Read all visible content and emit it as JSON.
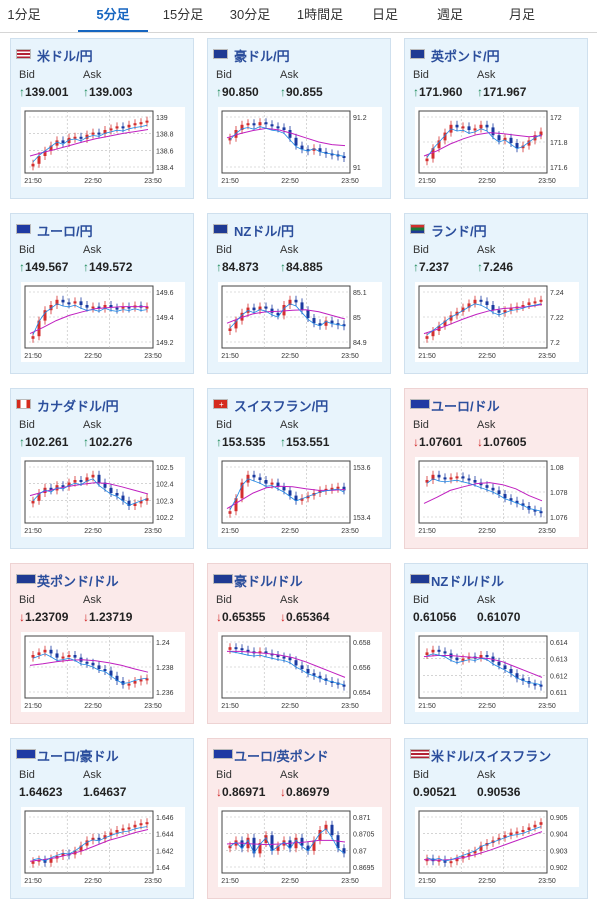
{
  "tabs": [
    {
      "label": "1分足",
      "active": false
    },
    {
      "label": "5分足",
      "active": true
    },
    {
      "label": "15分足",
      "active": false
    },
    {
      "label": "30分足",
      "active": false
    },
    {
      "label": "1時間足",
      "active": false
    },
    {
      "label": "日足",
      "active": false
    },
    {
      "label": "週足",
      "active": false
    },
    {
      "label": "月足",
      "active": false
    }
  ],
  "labels": {
    "bid": "Bid",
    "ask": "Ask"
  },
  "colors": {
    "up_candle": "#d32f2f",
    "down_candle": "#1a3aa0",
    "ma_short": "#1e88e5",
    "ma_long": "#c020c0",
    "card_up_bg": "#e8f4fc",
    "card_down_bg": "#fbeaea",
    "up_arrow": "#1a8a58",
    "down_arrow": "#d02020"
  },
  "pairs": [
    {
      "name": "米ドル/円",
      "flag": "us-flag-icon",
      "dir": "up",
      "bid": "139.001",
      "ask": "139.003",
      "yticks": [
        "139",
        "138.8",
        "138.6",
        "138.4"
      ],
      "xticks": [
        "21:50",
        "22:50",
        "23:50"
      ],
      "shape": [
        0.1,
        0.25,
        0.35,
        0.45,
        0.55,
        0.5,
        0.6,
        0.62,
        0.58,
        0.66,
        0.7,
        0.68,
        0.75,
        0.78,
        0.82,
        0.8,
        0.85,
        0.88,
        0.9,
        0.93
      ],
      "ma": [
        0.25,
        0.32,
        0.38,
        0.45,
        0.52,
        0.58,
        0.63,
        0.68,
        0.72,
        0.76
      ]
    },
    {
      "name": "豪ドル/円",
      "flag": "au-flag-icon",
      "dir": "up",
      "bid": "90.850",
      "ask": "90.855",
      "yticks": [
        "91.2",
        "91"
      ],
      "xticks": [
        "21:50",
        "22:50",
        "23:50"
      ],
      "shape": [
        0.6,
        0.75,
        0.85,
        0.88,
        0.84,
        0.9,
        0.86,
        0.82,
        0.8,
        0.75,
        0.6,
        0.45,
        0.38,
        0.35,
        0.4,
        0.33,
        0.3,
        0.28,
        0.25,
        0.23
      ],
      "ma": [
        0.6,
        0.68,
        0.74,
        0.78,
        0.75,
        0.68,
        0.6,
        0.52,
        0.47,
        0.45
      ]
    },
    {
      "name": "英ポンド/円",
      "flag": "gb-flag-icon",
      "dir": "up",
      "bid": "171.960",
      "ask": "171.967",
      "yticks": [
        "172",
        "171.8",
        "171.6"
      ],
      "xticks": [
        "21:50",
        "22:50",
        "23:50"
      ],
      "shape": [
        0.2,
        0.4,
        0.55,
        0.7,
        0.85,
        0.8,
        0.82,
        0.75,
        0.78,
        0.85,
        0.8,
        0.65,
        0.55,
        0.6,
        0.5,
        0.4,
        0.45,
        0.55,
        0.65,
        0.72
      ],
      "ma": [
        0.25,
        0.35,
        0.48,
        0.58,
        0.66,
        0.7,
        0.68,
        0.65,
        0.62,
        0.64
      ]
    },
    {
      "name": "ユーロ/円",
      "flag": "eu-flag-icon",
      "dir": "up",
      "bid": "149.567",
      "ask": "149.572",
      "yticks": [
        "149.6",
        "149.4",
        "149.2"
      ],
      "xticks": [
        "21:50",
        "22:50",
        "23:50"
      ],
      "shape": [
        0.15,
        0.45,
        0.65,
        0.75,
        0.85,
        0.8,
        0.78,
        0.82,
        0.75,
        0.7,
        0.72,
        0.68,
        0.75,
        0.7,
        0.68,
        0.72,
        0.7,
        0.74,
        0.7,
        0.72
      ],
      "ma": [
        0.2,
        0.32,
        0.45,
        0.55,
        0.62,
        0.68,
        0.7,
        0.72,
        0.72,
        0.72
      ]
    },
    {
      "name": "NZドル/円",
      "flag": "nz-flag-icon",
      "dir": "up",
      "bid": "84.873",
      "ask": "84.885",
      "yticks": [
        "85.1",
        "85",
        "84.9"
      ],
      "xticks": [
        "21:50",
        "22:50",
        "23:50"
      ],
      "shape": [
        0.3,
        0.45,
        0.6,
        0.7,
        0.65,
        0.72,
        0.68,
        0.6,
        0.55,
        0.75,
        0.85,
        0.8,
        0.65,
        0.5,
        0.4,
        0.35,
        0.45,
        0.4,
        0.38,
        0.35
      ],
      "ma": [
        0.4,
        0.5,
        0.58,
        0.62,
        0.63,
        0.65,
        0.66,
        0.62,
        0.55,
        0.48
      ]
    },
    {
      "name": "ランド/円",
      "flag": "za-flag-icon",
      "dir": "up",
      "bid": "7.237",
      "ask": "7.246",
      "yticks": [
        "7.24",
        "7.22",
        "7.2"
      ],
      "xticks": [
        "21:50",
        "22:50",
        "23:50"
      ],
      "shape": [
        0.15,
        0.25,
        0.35,
        0.45,
        0.55,
        0.62,
        0.7,
        0.78,
        0.85,
        0.82,
        0.75,
        0.65,
        0.6,
        0.65,
        0.7,
        0.72,
        0.75,
        0.8,
        0.82,
        0.85
      ],
      "ma": [
        0.2,
        0.28,
        0.38,
        0.48,
        0.57,
        0.64,
        0.68,
        0.7,
        0.72,
        0.76
      ]
    },
    {
      "name": "カナダドル/円",
      "flag": "ca-flag-icon",
      "dir": "up",
      "bid": "102.261",
      "ask": "102.276",
      "yticks": [
        "102.5",
        "102.4",
        "102.3",
        "102.2"
      ],
      "xticks": [
        "21:50",
        "22:50",
        "23:50"
      ],
      "shape": [
        0.35,
        0.5,
        0.6,
        0.55,
        0.65,
        0.62,
        0.7,
        0.75,
        0.72,
        0.8,
        0.85,
        0.7,
        0.6,
        0.5,
        0.45,
        0.35,
        0.25,
        0.3,
        0.35,
        0.4
      ],
      "ma": [
        0.45,
        0.52,
        0.58,
        0.63,
        0.67,
        0.7,
        0.68,
        0.62,
        0.55,
        0.48
      ]
    },
    {
      "name": "スイスフラン/円",
      "flag": "ch-flag-icon",
      "dir": "up",
      "bid": "153.535",
      "ask": "153.551",
      "yticks": [
        "153.6",
        "153.4"
      ],
      "xticks": [
        "21:50",
        "22:50",
        "23:50"
      ],
      "shape": [
        0.15,
        0.4,
        0.7,
        0.85,
        0.8,
        0.75,
        0.68,
        0.7,
        0.62,
        0.55,
        0.45,
        0.35,
        0.4,
        0.45,
        0.5,
        0.55,
        0.58,
        0.6,
        0.62,
        0.55
      ],
      "ma": [
        0.2,
        0.35,
        0.5,
        0.6,
        0.63,
        0.62,
        0.58,
        0.55,
        0.55,
        0.57
      ]
    },
    {
      "name": "ユーロ/ドル",
      "flag": "eu-us-flag-icon",
      "dir": "down",
      "bid": "1.07601",
      "ask": "1.07605",
      "yticks": [
        "1.08",
        "1.078",
        "1.076"
      ],
      "xticks": [
        "21:50",
        "22:50",
        "23:50"
      ],
      "shape": [
        0.75,
        0.85,
        0.8,
        0.78,
        0.8,
        0.82,
        0.78,
        0.75,
        0.7,
        0.65,
        0.6,
        0.55,
        0.48,
        0.4,
        0.35,
        0.3,
        0.25,
        0.18,
        0.15,
        0.12
      ],
      "ma": [
        0.3,
        0.42,
        0.55,
        0.62,
        0.68,
        0.7,
        0.66,
        0.58,
        0.45,
        0.35
      ]
    },
    {
      "name": "英ポンド/ドル",
      "flag": "gb-us-flag-icon",
      "dir": "down",
      "bid": "1.23709",
      "ask": "1.23719",
      "yticks": [
        "1.24",
        "1.238",
        "1.236"
      ],
      "xticks": [
        "21:50",
        "22:50",
        "23:50"
      ],
      "shape": [
        0.75,
        0.8,
        0.85,
        0.78,
        0.7,
        0.72,
        0.75,
        0.7,
        0.62,
        0.6,
        0.55,
        0.48,
        0.45,
        0.35,
        0.25,
        0.18,
        0.2,
        0.25,
        0.28,
        0.3
      ],
      "ma": [
        0.55,
        0.58,
        0.62,
        0.65,
        0.66,
        0.64,
        0.6,
        0.55,
        0.48,
        0.42
      ]
    },
    {
      "name": "豪ドル/ドル",
      "flag": "au-us-flag-icon",
      "dir": "down",
      "bid": "0.65355",
      "ask": "0.65364",
      "yticks": [
        "0.658",
        "0.656",
        "0.654"
      ],
      "xticks": [
        "21:50",
        "22:50",
        "23:50"
      ],
      "shape": [
        0.9,
        0.88,
        0.85,
        0.82,
        0.8,
        0.82,
        0.78,
        0.75,
        0.72,
        0.7,
        0.65,
        0.55,
        0.48,
        0.4,
        0.35,
        0.3,
        0.25,
        0.22,
        0.18,
        0.15
      ],
      "ma": [
        0.82,
        0.82,
        0.8,
        0.78,
        0.75,
        0.7,
        0.62,
        0.52,
        0.42,
        0.32
      ]
    },
    {
      "name": "NZドル/ドル",
      "flag": "nz-us-flag-icon",
      "dir": "flat",
      "bid": "0.61056",
      "ask": "0.61070",
      "yticks": [
        "0.614",
        "0.613",
        "0.612",
        "0.611"
      ],
      "xticks": [
        "21:50",
        "22:50",
        "23:50"
      ],
      "shape": [
        0.8,
        0.85,
        0.82,
        0.78,
        0.7,
        0.65,
        0.68,
        0.72,
        0.7,
        0.75,
        0.72,
        0.62,
        0.55,
        0.48,
        0.4,
        0.3,
        0.25,
        0.2,
        0.18,
        0.15
      ],
      "ma": [
        0.72,
        0.74,
        0.74,
        0.72,
        0.7,
        0.68,
        0.62,
        0.52,
        0.42,
        0.32
      ]
    },
    {
      "name": "ユーロ/豪ドル",
      "flag": "eu-au-flag-icon",
      "dir": "flat",
      "bid": "1.64623",
      "ask": "1.64637",
      "yticks": [
        "1.646",
        "1.644",
        "1.642",
        "1.64"
      ],
      "xticks": [
        "21:50",
        "22:50",
        "23:50"
      ],
      "shape": [
        0.15,
        0.18,
        0.12,
        0.2,
        0.25,
        0.3,
        0.28,
        0.35,
        0.45,
        0.55,
        0.6,
        0.58,
        0.65,
        0.7,
        0.75,
        0.78,
        0.8,
        0.85,
        0.88,
        0.9
      ],
      "ma": [
        0.15,
        0.18,
        0.22,
        0.28,
        0.35,
        0.45,
        0.55,
        0.62,
        0.7,
        0.76
      ]
    },
    {
      "name": "ユーロ/英ポンド",
      "flag": "eu-gb-flag-icon",
      "dir": "down",
      "bid": "0.86971",
      "ask": "0.86979",
      "yticks": [
        "0.871",
        "0.8705",
        "0.87",
        "0.8695"
      ],
      "xticks": [
        "21:50",
        "22:50",
        "23:50"
      ],
      "shape": [
        0.45,
        0.55,
        0.4,
        0.6,
        0.3,
        0.5,
        0.65,
        0.35,
        0.45,
        0.55,
        0.4,
        0.6,
        0.45,
        0.35,
        0.55,
        0.75,
        0.85,
        0.65,
        0.4,
        0.3
      ],
      "ma": [
        0.48,
        0.5,
        0.48,
        0.47,
        0.48,
        0.5,
        0.52,
        0.55,
        0.55,
        0.52
      ]
    },
    {
      "name": "米ドル/スイスフラン",
      "flag": "us-ch-flag-icon",
      "dir": "flat",
      "bid": "0.90521",
      "ask": "0.90536",
      "yticks": [
        "0.905",
        "0.904",
        "0.903",
        "0.902"
      ],
      "xticks": [
        "21:50",
        "22:50",
        "23:50"
      ],
      "shape": [
        0.2,
        0.15,
        0.18,
        0.12,
        0.15,
        0.2,
        0.25,
        0.3,
        0.35,
        0.45,
        0.5,
        0.55,
        0.6,
        0.65,
        0.7,
        0.72,
        0.75,
        0.8,
        0.85,
        0.9
      ],
      "ma": [
        0.18,
        0.17,
        0.18,
        0.22,
        0.28,
        0.36,
        0.45,
        0.54,
        0.63,
        0.72
      ]
    }
  ]
}
